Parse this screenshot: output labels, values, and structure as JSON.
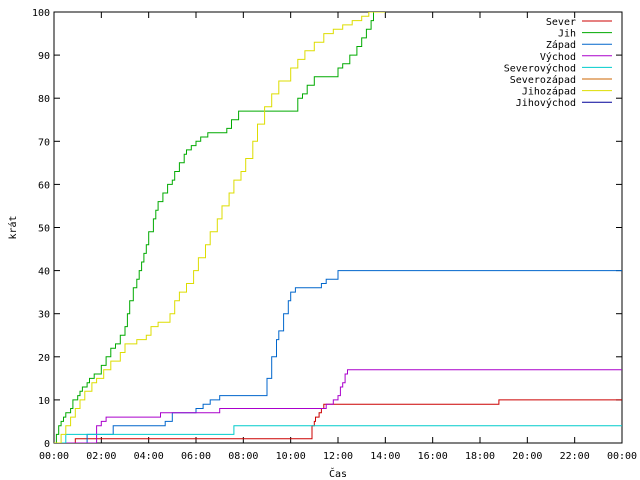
{
  "chart_data": {
    "type": "line",
    "title": "",
    "xlabel": "Čas",
    "ylabel": "krát",
    "xlim": [
      0,
      24
    ],
    "ylim": [
      0,
      100
    ],
    "grid": false,
    "legend_position": "top-right",
    "x_ticks": [
      {
        "value": 0,
        "label": "00:00"
      },
      {
        "value": 2,
        "label": "02:00"
      },
      {
        "value": 4,
        "label": "04:00"
      },
      {
        "value": 6,
        "label": "06:00"
      },
      {
        "value": 8,
        "label": "08:00"
      },
      {
        "value": 10,
        "label": "10:00"
      },
      {
        "value": 12,
        "label": "12:00"
      },
      {
        "value": 14,
        "label": "14:00"
      },
      {
        "value": 16,
        "label": "16:00"
      },
      {
        "value": 18,
        "label": "18:00"
      },
      {
        "value": 20,
        "label": "20:00"
      },
      {
        "value": 22,
        "label": "22:00"
      },
      {
        "value": 24,
        "label": "00:00"
      }
    ],
    "y_ticks": [
      {
        "value": 0,
        "label": "0"
      },
      {
        "value": 10,
        "label": "10"
      },
      {
        "value": 20,
        "label": "20"
      },
      {
        "value": 30,
        "label": "30"
      },
      {
        "value": 40,
        "label": "40"
      },
      {
        "value": 50,
        "label": "50"
      },
      {
        "value": 60,
        "label": "60"
      },
      {
        "value": 70,
        "label": "70"
      },
      {
        "value": 80,
        "label": "80"
      },
      {
        "value": 90,
        "label": "90"
      },
      {
        "value": 100,
        "label": "100"
      }
    ],
    "series": [
      {
        "name": "Sever",
        "color": "#cc0000",
        "x": [
          0,
          0.9,
          0.9,
          10.9,
          10.9,
          11.0,
          11.05,
          11.2,
          11.3,
          11.4,
          11.5,
          18.7,
          18.8,
          24
        ],
        "y": [
          0,
          0,
          1,
          1,
          4,
          5,
          6,
          7,
          8,
          9,
          9,
          9,
          10,
          10
        ]
      },
      {
        "name": "Jih",
        "color": "#00aa00",
        "x": [
          0,
          0.1,
          0.2,
          0.3,
          0.4,
          0.5,
          0.7,
          0.8,
          1.0,
          1.1,
          1.2,
          1.4,
          1.5,
          1.7,
          2.0,
          2.2,
          2.4,
          2.6,
          2.8,
          3.0,
          3.1,
          3.2,
          3.35,
          3.5,
          3.6,
          3.7,
          3.8,
          3.9,
          4.0,
          4.2,
          4.3,
          4.4,
          4.6,
          4.8,
          5.0,
          5.1,
          5.3,
          5.5,
          5.6,
          5.8,
          6.0,
          6.2,
          6.5,
          7.0,
          7.3,
          7.5,
          7.8,
          8.0,
          9.0,
          10.0,
          10.3,
          10.5,
          10.7,
          11.0,
          11.3,
          11.6,
          12.0,
          12.2,
          12.5,
          12.8,
          13.0,
          13.2,
          13.4,
          13.5,
          14.0
        ],
        "y": [
          0,
          2,
          4,
          5,
          6,
          7,
          8,
          10,
          11,
          12,
          13,
          14,
          15,
          16,
          18,
          20,
          22,
          23,
          25,
          27,
          30,
          33,
          36,
          38,
          40,
          42,
          44,
          46,
          49,
          52,
          54,
          56,
          58,
          60,
          61,
          63,
          65,
          67,
          68,
          69,
          70,
          71,
          72,
          72,
          73,
          75,
          77,
          77,
          77,
          77,
          80,
          81,
          83,
          85,
          85,
          85,
          87,
          88,
          90,
          92,
          94,
          96,
          98,
          100,
          100
        ]
      },
      {
        "name": "Západ",
        "color": "#0066cc",
        "x": [
          0,
          1.4,
          1.4,
          2.3,
          2.5,
          4.5,
          4.7,
          5.0,
          6.0,
          6.3,
          6.6,
          7.0,
          8.0,
          8.8,
          9.0,
          9.2,
          9.4,
          9.5,
          9.7,
          9.9,
          10.0,
          10.2,
          10.5,
          11.0,
          11.3,
          11.5,
          12.0,
          24
        ],
        "y": [
          0,
          0,
          2,
          2,
          4,
          4,
          5,
          7,
          8,
          9,
          10,
          11,
          11,
          11,
          15,
          20,
          24,
          26,
          30,
          33,
          35,
          36,
          36,
          36,
          37,
          38,
          40,
          40
        ]
      },
      {
        "name": "Východ",
        "color": "#aa00cc",
        "x": [
          0,
          1.6,
          1.8,
          2.0,
          2.2,
          3.0,
          4.0,
          4.5,
          5.0,
          6.0,
          7.0,
          8.0,
          9.0,
          10.0,
          10.5,
          11.0,
          11.5,
          11.8,
          12.0,
          12.1,
          12.2,
          12.3,
          12.4,
          24
        ],
        "y": [
          0,
          0,
          4,
          5,
          6,
          6,
          6,
          7,
          7,
          7,
          8,
          8,
          8,
          8,
          8,
          8,
          9,
          10,
          11,
          13,
          14,
          16,
          17,
          17
        ]
      },
      {
        "name": "Severovýchod",
        "color": "#00cccc",
        "x": [
          0,
          0.5,
          0.5,
          7.6,
          7.6,
          24
        ],
        "y": [
          0,
          0,
          2,
          2,
          4,
          4
        ]
      },
      {
        "name": "Severozápad",
        "color": "#cc6600",
        "x": [],
        "y": []
      },
      {
        "name": "Jihozápad",
        "color": "#dddd00",
        "x": [
          0,
          0.3,
          0.5,
          0.7,
          0.9,
          1.1,
          1.3,
          1.6,
          1.8,
          2.1,
          2.4,
          2.8,
          3.0,
          3.5,
          3.9,
          4.1,
          4.4,
          4.9,
          5.1,
          5.3,
          5.6,
          5.9,
          6.1,
          6.4,
          6.6,
          6.9,
          7.1,
          7.4,
          7.6,
          7.9,
          8.1,
          8.4,
          8.6,
          8.9,
          9.2,
          9.5,
          10.0,
          10.3,
          10.6,
          11.0,
          11.4,
          11.8,
          12.2,
          12.6,
          13.0,
          13.3,
          13.5,
          14.0
        ],
        "y": [
          0,
          2,
          4,
          6,
          8,
          10,
          12,
          14,
          15,
          17,
          19,
          21,
          23,
          24,
          25,
          27,
          28,
          30,
          33,
          35,
          37,
          40,
          43,
          46,
          49,
          52,
          55,
          58,
          61,
          63,
          66,
          70,
          74,
          78,
          81,
          84,
          87,
          89,
          91,
          93,
          95,
          96,
          97,
          98,
          99,
          100,
          100,
          100
        ]
      },
      {
        "name": "Jihovýchod",
        "color": "#000099",
        "x": [],
        "y": []
      }
    ]
  }
}
